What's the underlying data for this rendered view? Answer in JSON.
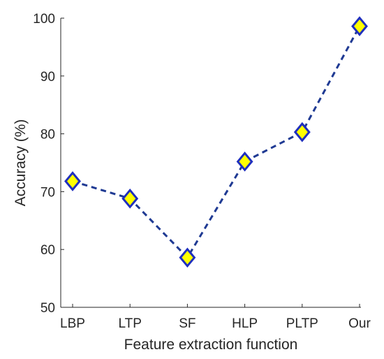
{
  "chart_data": {
    "type": "line",
    "title": "",
    "xlabel": "Feature extraction function",
    "ylabel": "Accuracy (%)",
    "categories": [
      "LBP",
      "LTP",
      "SF",
      "HLP",
      "PLTP",
      "Our"
    ],
    "series": [
      {
        "values": [
          71.8,
          68.8,
          58.6,
          75.2,
          80.3,
          98.6
        ]
      }
    ],
    "ylim": [
      50,
      100
    ],
    "yticks": [
      50,
      60,
      70,
      80,
      90,
      100
    ],
    "grid": false,
    "legend": "none",
    "line_style": "dashed",
    "marker": "diamond"
  },
  "colors": {
    "line": "#1f3a93",
    "marker_edge": "#1f2fbf",
    "marker_fill": "#ffff00",
    "axis": "#262626",
    "text": "#262626"
  }
}
